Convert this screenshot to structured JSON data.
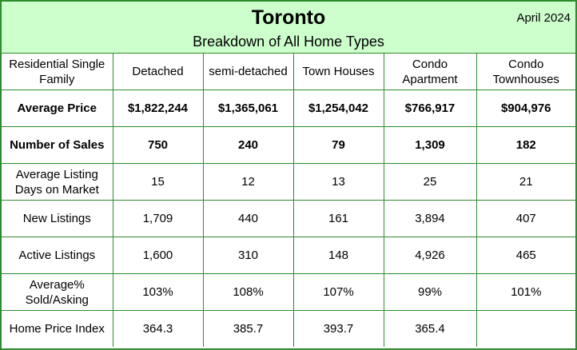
{
  "header": {
    "title": "Toronto",
    "subtitle": "Breakdown of All Home Types",
    "date": "April 2024"
  },
  "table": {
    "corner_label": "Residential Single Family",
    "columns": [
      "Detached",
      "semi-detached",
      "Town Houses",
      "Condo Apartment",
      "Condo Townhouses"
    ],
    "rows": [
      {
        "label": "Average Price",
        "bold": true,
        "values": [
          "$1,822,244",
          "$1,365,061",
          "$1,254,042",
          "$766,917",
          "$904,976"
        ]
      },
      {
        "label": "Number of Sales",
        "bold": true,
        "values": [
          "750",
          "240",
          "79",
          "1,309",
          "182"
        ]
      },
      {
        "label": "Average Listing Days on Market",
        "bold": false,
        "values": [
          "15",
          "12",
          "13",
          "25",
          "21"
        ]
      },
      {
        "label": "New Listings",
        "bold": false,
        "values": [
          "1,709",
          "440",
          "161",
          "3,894",
          "407"
        ]
      },
      {
        "label": "Active Listings",
        "bold": false,
        "values": [
          "1,600",
          "310",
          "148",
          "4,926",
          "465"
        ]
      },
      {
        "label": "Average% Sold/Asking",
        "bold": false,
        "values": [
          "103%",
          "108%",
          "107%",
          "99%",
          "101%"
        ]
      },
      {
        "label": "Home Price Index",
        "bold": false,
        "values": [
          "364.3",
          "385.7",
          "393.7",
          "365.4",
          ""
        ]
      }
    ]
  },
  "colors": {
    "header_bg": "#ccffcc",
    "border": "#2e8b2e"
  }
}
